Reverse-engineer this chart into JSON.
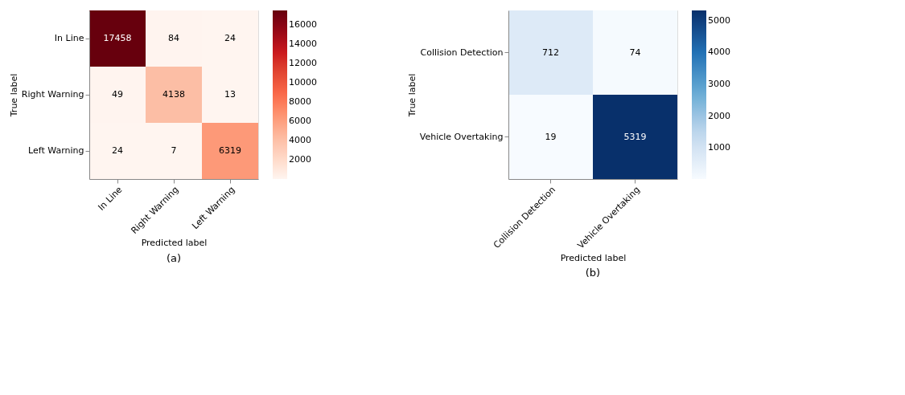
{
  "chart_data": [
    {
      "type": "heatmap",
      "xlabel": "Predicted label",
      "ylabel": "True label",
      "categories": [
        "In Line",
        "Right Warning",
        "Left Warning"
      ],
      "y_categories": [
        "In Line",
        "Right Warning",
        "Left Warning"
      ],
      "cells": [
        [
          17458,
          84,
          24
        ],
        [
          49,
          4138,
          13
        ],
        [
          24,
          7,
          6319
        ]
      ],
      "clim": [
        7,
        17458
      ],
      "cticks": [
        2000,
        4000,
        6000,
        8000,
        10000,
        12000,
        14000,
        16000
      ],
      "colors": [
        "#fff5f0",
        "#fcbba1",
        "#fb6a4a",
        "#cb181d",
        "#67000d"
      ],
      "data_labels": true,
      "annotations": [
        "(a)"
      ]
    },
    {
      "type": "heatmap",
      "xlabel": "Predicted label",
      "ylabel": "True label",
      "categories": [
        "Collision Detection",
        "Vehicle Overtaking"
      ],
      "y_categories": [
        "Collision Detection",
        "Vehicle Overtaking"
      ],
      "cells": [
        [
          712,
          74
        ],
        [
          19,
          5319
        ]
      ],
      "clim": [
        19,
        5319
      ],
      "cticks": [
        1000,
        2000,
        3000,
        4000,
        5000
      ],
      "colors": [
        "#f7fbff",
        "#c6dbef",
        "#6baed6",
        "#2171b5",
        "#08306b"
      ],
      "data_labels": true,
      "annotations": [
        "(b)"
      ]
    }
  ]
}
